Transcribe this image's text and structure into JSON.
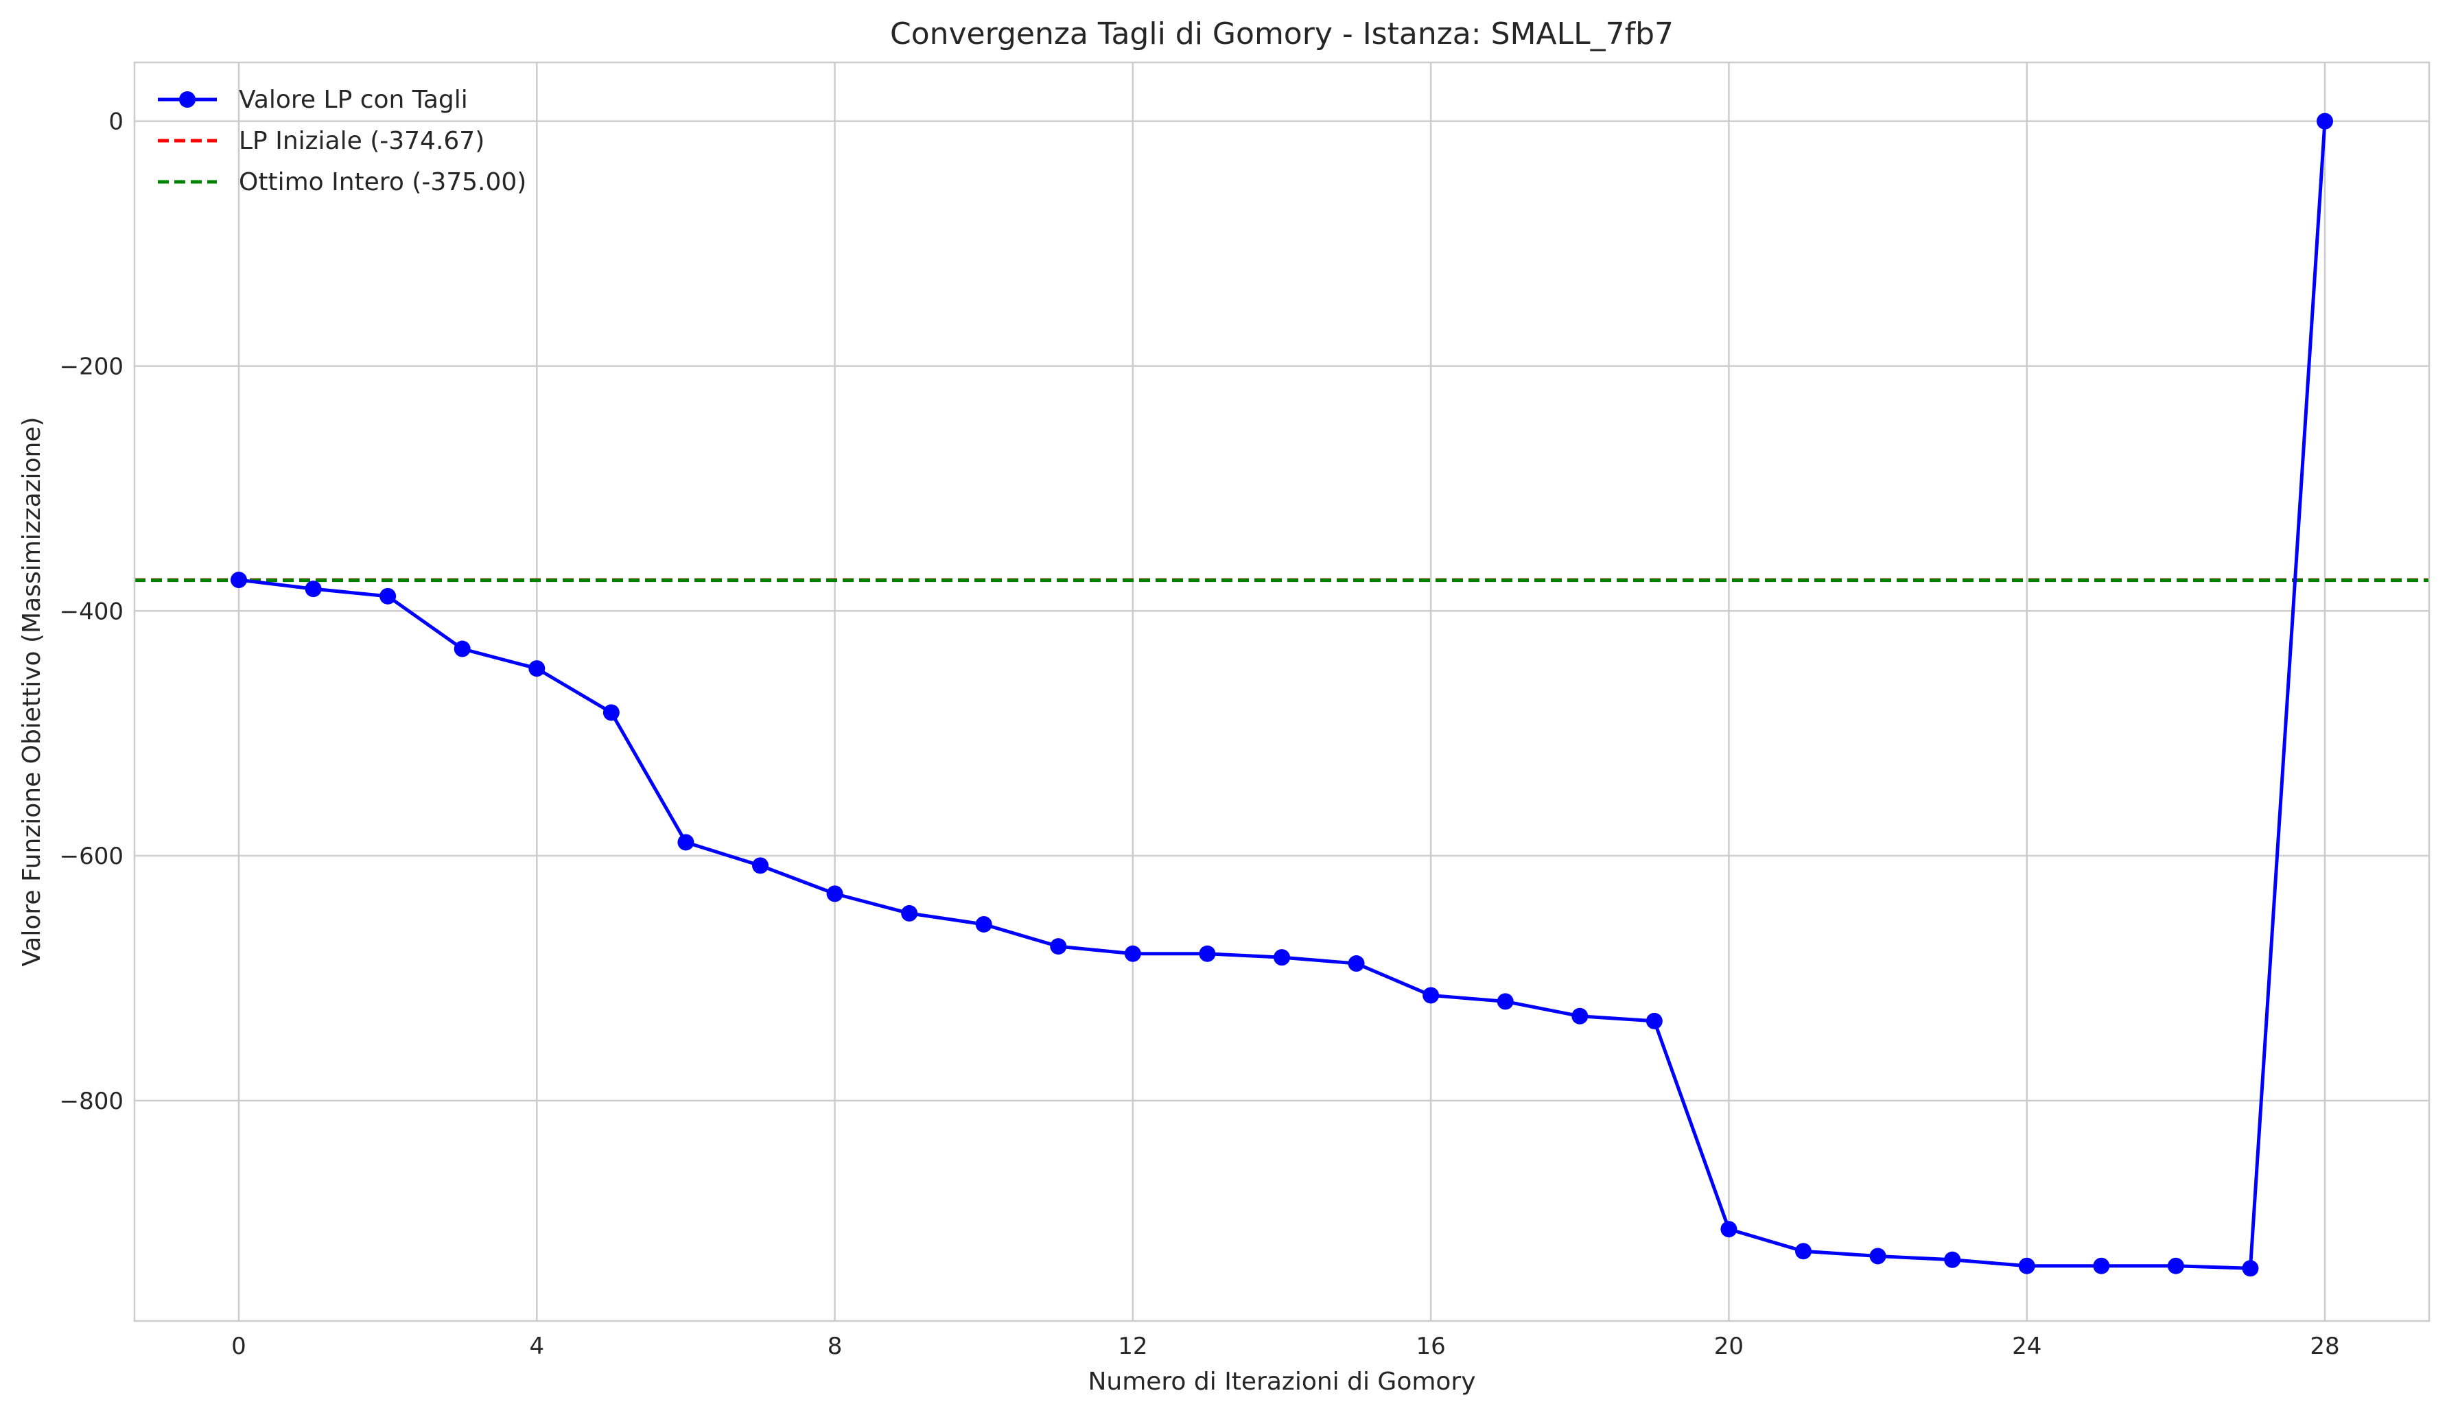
{
  "chart_data": {
    "type": "line",
    "title": "Convergenza Tagli di Gomory - Istanza: SMALL_7fb7",
    "xlabel": "Numero di Iterazioni di Gomory",
    "ylabel": "Valore Funzione Obiettivo (Massimizzazione)",
    "xlim": [
      -1.4,
      29.4
    ],
    "ylim": [
      -980,
      48
    ],
    "x_ticks": [
      0,
      4,
      8,
      12,
      16,
      20,
      24,
      28
    ],
    "y_ticks": [
      0,
      -200,
      -400,
      -600,
      -800
    ],
    "x_tick_labels": [
      "0",
      "4",
      "8",
      "12",
      "16",
      "20",
      "24",
      "28"
    ],
    "y_tick_labels": [
      "0",
      "−200",
      "−400",
      "−600",
      "−800"
    ],
    "grid": true,
    "legend_position": "top-left",
    "series": [
      {
        "name": "Valore LP con Tagli",
        "color": "#0000ff",
        "marker": "circle",
        "x": [
          0,
          1,
          2,
          3,
          4,
          5,
          6,
          7,
          8,
          9,
          10,
          11,
          12,
          13,
          14,
          15,
          16,
          17,
          18,
          19,
          20,
          21,
          22,
          23,
          24,
          25,
          26,
          27,
          28
        ],
        "y": [
          -374.67,
          -382,
          -388,
          -431,
          -447,
          -483,
          -589,
          -608,
          -631,
          -647,
          -656,
          -674,
          -680,
          -680,
          -683,
          -688,
          -714,
          -719,
          -731,
          -735,
          -905,
          -923,
          -927,
          -930,
          -935,
          -935,
          -935,
          -937,
          0
        ]
      }
    ],
    "reference_lines": [
      {
        "name": "LP Iniziale (-374.67)",
        "value": -374.67,
        "color": "#ff0000",
        "style": "dashed"
      },
      {
        "name": "Ottimo Intero (-375.00)",
        "value": -375.0,
        "color": "#008000",
        "style": "dashed"
      }
    ]
  }
}
